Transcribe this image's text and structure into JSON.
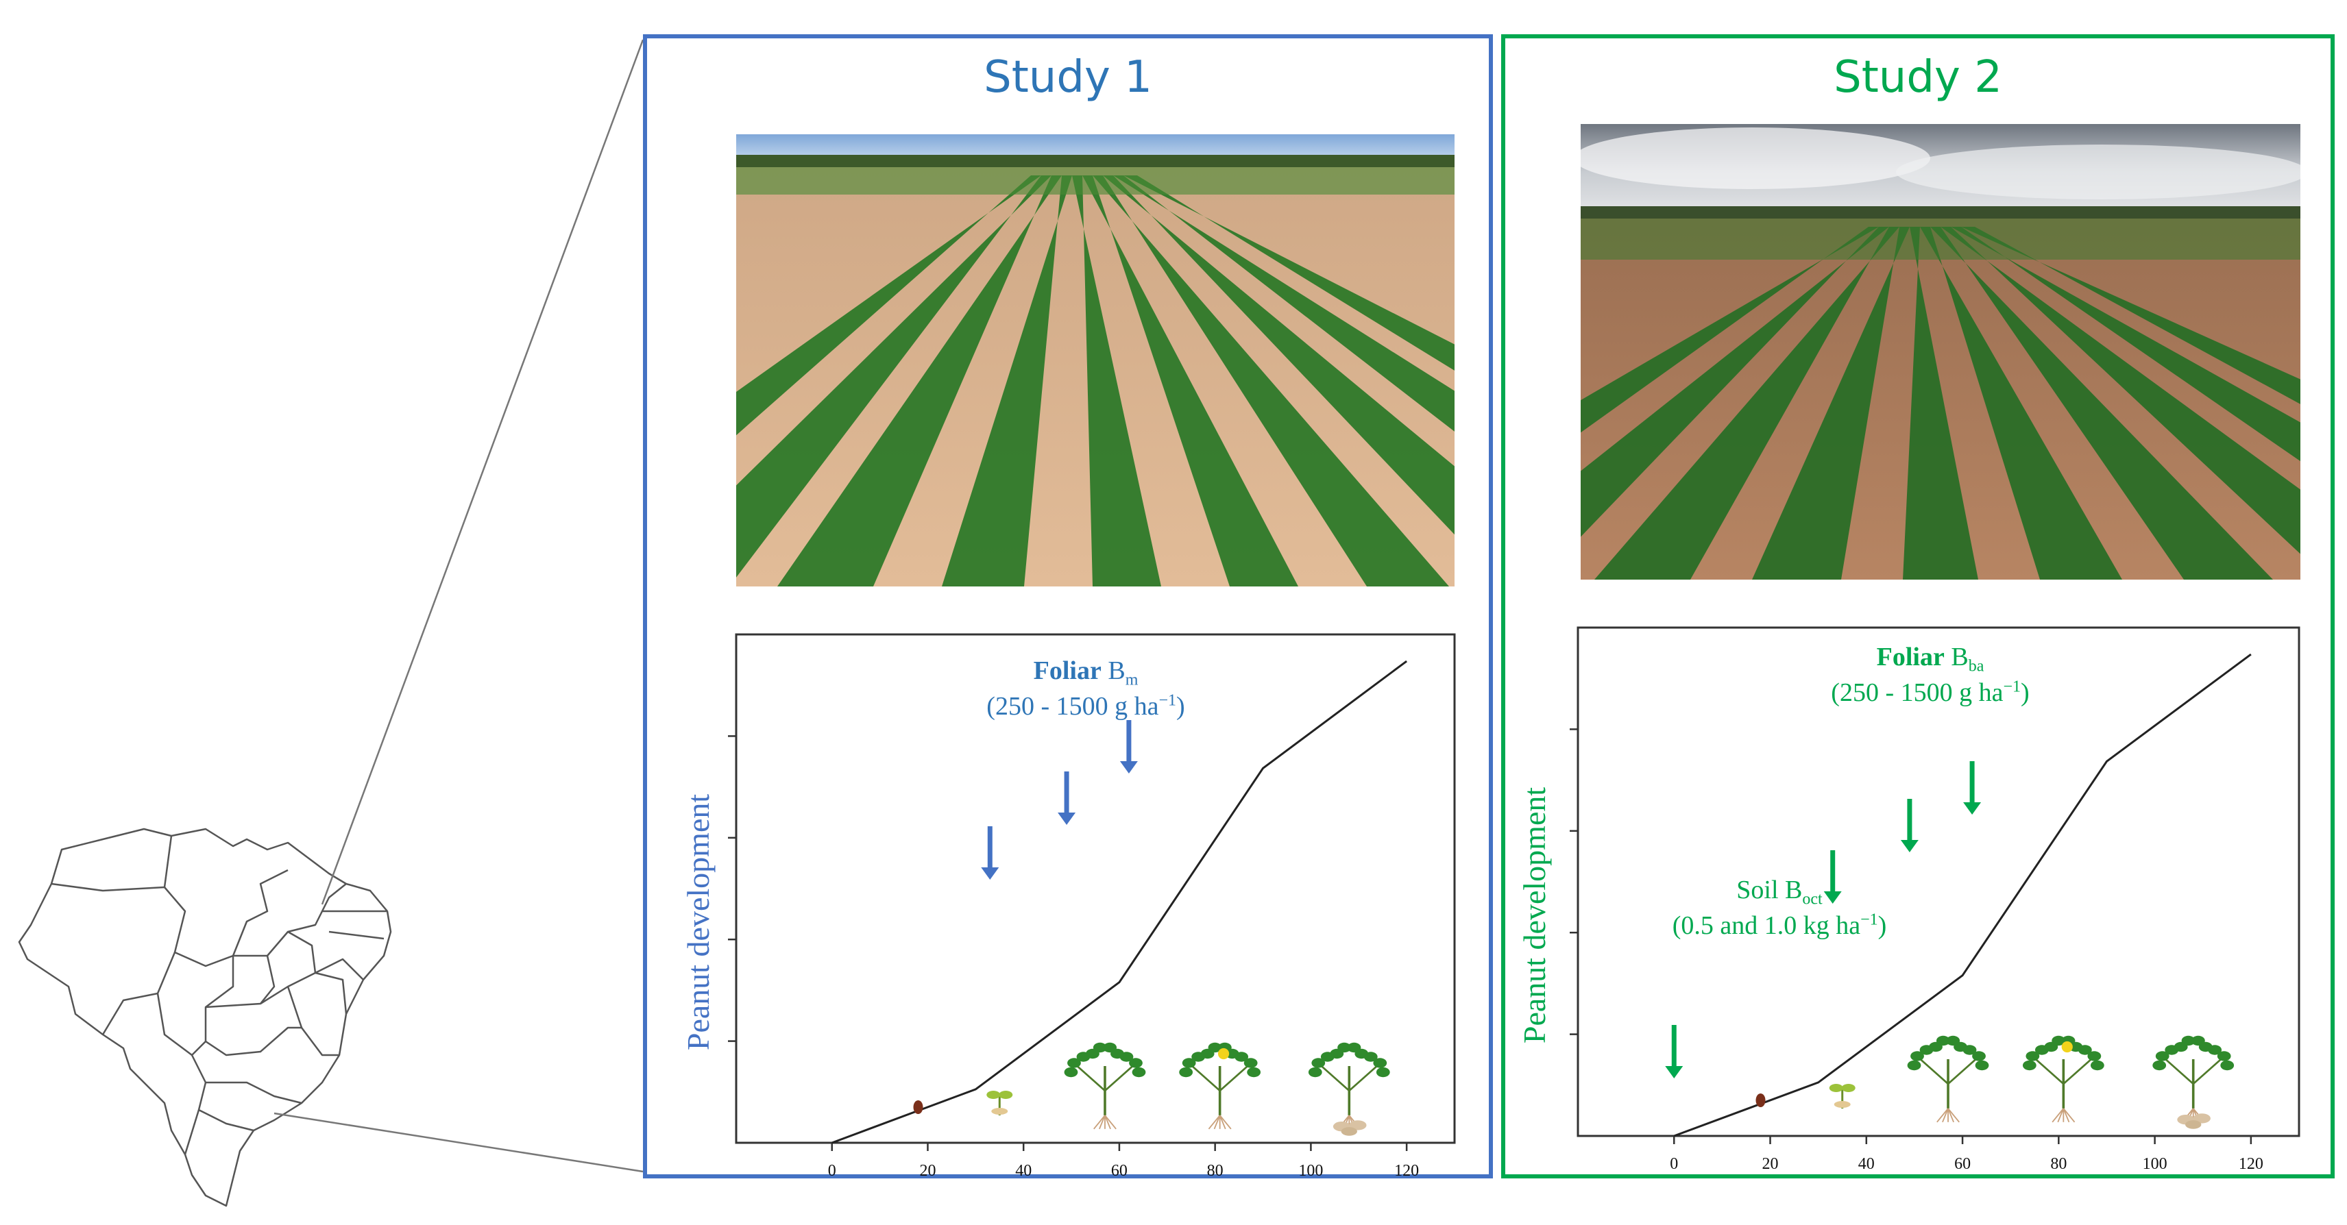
{
  "colors": {
    "study1": "#4472c4",
    "study2": "#00a84f",
    "axis": "#333333",
    "curve": "#222222",
    "map_line": "#6b6b6b"
  },
  "map": {
    "region": "Brazil"
  },
  "study1": {
    "title": "Study 1",
    "photo": "peanut-field-study1",
    "note": {
      "bold": "Foliar",
      "text": "B",
      "sub": "m",
      "range_pre": "(250 - 1500 g ha",
      "range_sup": "−1",
      "range_post": ")"
    },
    "arrows_x_days": [
      33,
      49,
      62
    ]
  },
  "study2": {
    "title": "Study 2",
    "photo": "peanut-field-study2",
    "note_foliar": {
      "bold": "Foliar",
      "text": "B",
      "sub": "ba",
      "range_pre": "(250 - 1500 g ha",
      "range_sup": "−1",
      "range_post": ")"
    },
    "note_soil": {
      "text": "Soil B",
      "sub": "oct",
      "range_pre": "(0.5 and 1.0 kg ha",
      "range_sup": "−1",
      "range_post": ")"
    },
    "foliar_arrows_x_days": [
      33,
      49,
      62
    ],
    "soil_arrow_x_day": 0
  },
  "chart_data": [
    {
      "type": "line",
      "title": "Study 1",
      "ylabel": "Peanut development",
      "xlabel": "",
      "x": [
        0,
        30,
        60,
        90,
        120
      ],
      "y": [
        0,
        1,
        3,
        7,
        9
      ],
      "xticks": [
        "0",
        "20",
        "40",
        "60",
        "80",
        "100",
        "120"
      ],
      "xlim": [
        -20,
        130
      ],
      "ylim": [
        0,
        9.5
      ],
      "grid": false,
      "growth_stage_icons": [
        "seed",
        "sprout",
        "vegetative-plant",
        "flowering-plant",
        "pod-plant"
      ],
      "annotations": [
        {
          "text": "Foliar Bm (250 - 1500 g ha−1)",
          "arrows_at_days": [
            33,
            49,
            62
          ]
        }
      ]
    },
    {
      "type": "line",
      "title": "Study 2",
      "ylabel": "Peanut development",
      "xlabel": "",
      "x": [
        0,
        30,
        60,
        90,
        120
      ],
      "y": [
        0,
        1,
        3,
        7,
        9
      ],
      "xticks": [
        "0",
        "20",
        "40",
        "60",
        "80",
        "100",
        "120"
      ],
      "xlim": [
        -20,
        130
      ],
      "ylim": [
        0,
        9.5
      ],
      "grid": false,
      "growth_stage_icons": [
        "seed",
        "sprout",
        "vegetative-plant",
        "flowering-plant",
        "pod-plant"
      ],
      "annotations": [
        {
          "text": "Foliar Bba (250 - 1500 g ha−1)",
          "arrows_at_days": [
            33,
            49,
            62
          ]
        },
        {
          "text": "Soil Boct (0.5 and 1.0 kg ha−1)",
          "arrows_at_days": [
            0
          ]
        }
      ]
    }
  ]
}
